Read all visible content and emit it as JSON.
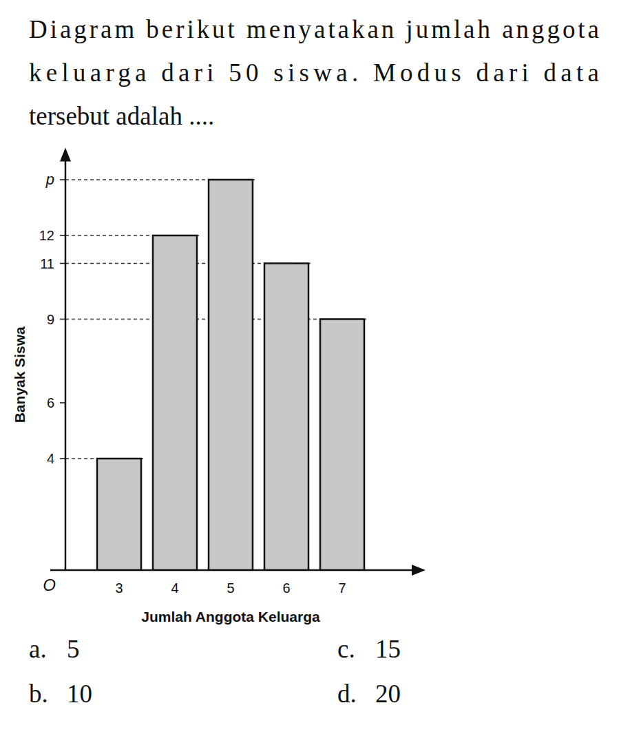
{
  "question": {
    "lines": [
      "Diagram berikut menyatakan jumlah anggota",
      "keluarga dari 50 siswa. Modus dari data",
      "tersebut adalah ...."
    ]
  },
  "chart_data": {
    "type": "bar",
    "categories": [
      3,
      4,
      5,
      6,
      7
    ],
    "values": [
      4,
      12,
      14,
      11,
      9
    ],
    "color": "#c8c8c8",
    "x_label": "Jumlah Anggota Keluarga",
    "y_label": "Banyak Siswa",
    "origin_label": "O",
    "ylim": [
      0,
      15
    ],
    "yticks": [
      4,
      6,
      9,
      11,
      12,
      {
        "value": 14,
        "label": "p"
      }
    ]
  },
  "options": [
    {
      "letter": "a.",
      "text": "5"
    },
    {
      "letter": "c.",
      "text": "15"
    },
    {
      "letter": "b.",
      "text": "10"
    },
    {
      "letter": "d.",
      "text": "20"
    }
  ]
}
